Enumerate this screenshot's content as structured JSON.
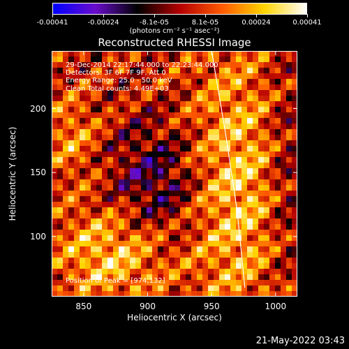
{
  "colorbar": {
    "ticks": [
      "-0.00041",
      "-0.00024",
      "-8.1e-05",
      "8.1e-05",
      "0.00024",
      "0.00041"
    ],
    "units": "(photons cm⁻² s⁻¹ asec⁻²)",
    "colors": [
      "#0000ff",
      "#6a0dcc",
      "#000000",
      "#b40000",
      "#ff5a00",
      "#ffd400",
      "#ffffff"
    ]
  },
  "info": {
    "time": "29-Dec-2014 22:17:44.000 to 22:23:44.000",
    "detectors": "Detectors: 3F 6F 7F 9F, Att 0",
    "energy": "Energy Range: 25.0 - 50.0 keV",
    "clean": "Clean     Total counts: 4.49E+03",
    "peak": "Position of Peak = [974,132]"
  },
  "footer": "21-May-2022 03:43",
  "chart_data": {
    "type": "heatmap",
    "title": "Reconstructed RHESSI Image",
    "xlabel": "Heliocentric X (arcsec)",
    "ylabel": "Heliocentric Y (arcsec)",
    "xlim": [
      825,
      1017
    ],
    "ylim": [
      53,
      245
    ],
    "xticks": [
      850,
      900,
      950,
      1000
    ],
    "yticks": [
      100,
      150,
      200
    ],
    "zlim": [
      -0.00041,
      0.00041
    ],
    "peak": [
      974,
      132
    ],
    "limb": [
      [
        950,
        245
      ],
      [
        961,
        180
      ],
      [
        970,
        120
      ],
      [
        976,
        60
      ]
    ],
    "grid": false
  }
}
